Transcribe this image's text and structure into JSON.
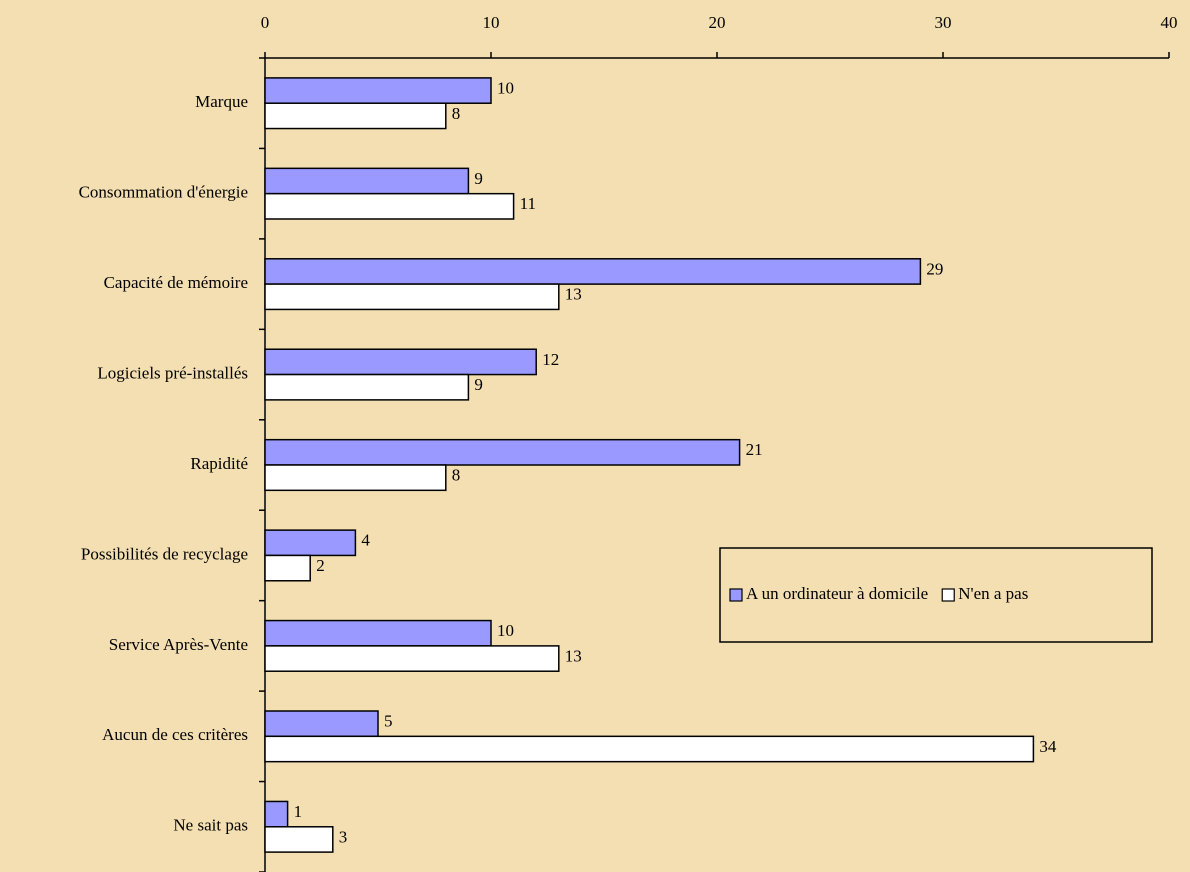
{
  "chart_data": {
    "type": "hbar",
    "categories": [
      "Marque",
      "Consommation d'énergie",
      "Capacité de mémoire",
      "Logiciels pré-installés",
      "Rapidité",
      "Possibilités de recyclage",
      "Service Après-Vente",
      "Aucun de ces critères",
      "Ne sait pas"
    ],
    "series": [
      {
        "name": "A un ordinateur à domicile",
        "color": "#9999ff",
        "values": [
          10,
          9,
          29,
          12,
          21,
          4,
          10,
          5,
          1
        ]
      },
      {
        "name": "N'en a pas",
        "color": "#ffffff",
        "values": [
          8,
          11,
          13,
          9,
          8,
          2,
          13,
          34,
          3
        ]
      }
    ],
    "xlim": [
      0,
      40
    ],
    "xticks": [
      0,
      10,
      20,
      30,
      40
    ],
    "legend_position": "right",
    "grid": false
  }
}
